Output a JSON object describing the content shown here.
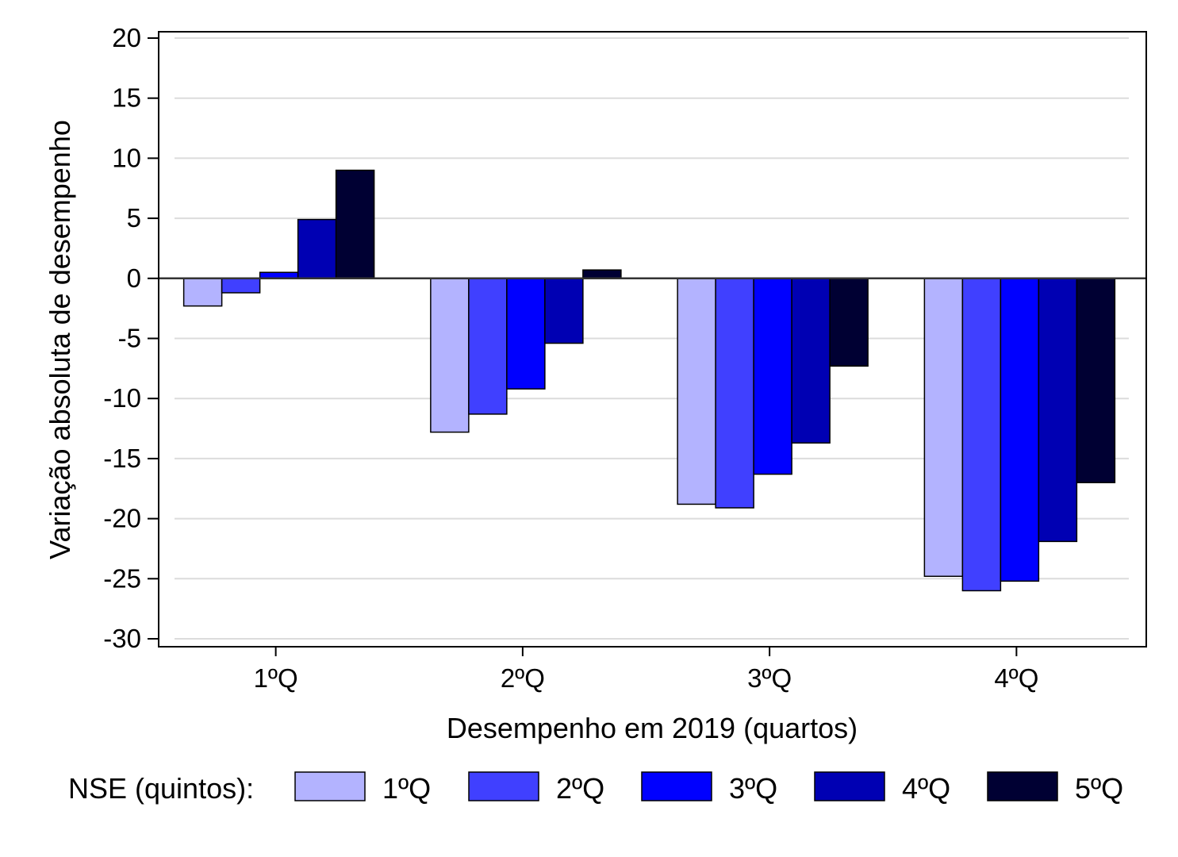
{
  "chart_data": {
    "type": "bar",
    "xlabel": "Desempenho em 2019 (quartos)",
    "ylabel": "Variação absoluta de desempenho",
    "ylim": [
      -30,
      20
    ],
    "yticks": [
      "20",
      "15",
      "10",
      "5",
      "0",
      "-5",
      "-10",
      "-15",
      "-20",
      "-25",
      "-30"
    ],
    "categories": [
      "1ºQ",
      "2ºQ",
      "3ºQ",
      "4ºQ"
    ],
    "grid": true,
    "legend": {
      "title": "NSE (quintos):",
      "placement": "bottom"
    },
    "series": [
      {
        "name": "1ºQ",
        "color": "#b3b3ff",
        "values": [
          -2.3,
          -12.8,
          -18.8,
          -24.8
        ]
      },
      {
        "name": "2ºQ",
        "color": "#4040ff",
        "values": [
          -1.2,
          -11.3,
          -19.1,
          -26.0
        ]
      },
      {
        "name": "3ºQ",
        "color": "#0000ff",
        "values": [
          0.5,
          -9.2,
          -16.3,
          -25.2
        ]
      },
      {
        "name": "4ºQ",
        "color": "#0000b3",
        "values": [
          4.9,
          -5.4,
          -13.7,
          -21.9
        ]
      },
      {
        "name": "5ºQ",
        "color": "#000033",
        "values": [
          9.0,
          0.7,
          -7.3,
          -17.0
        ]
      }
    ]
  }
}
